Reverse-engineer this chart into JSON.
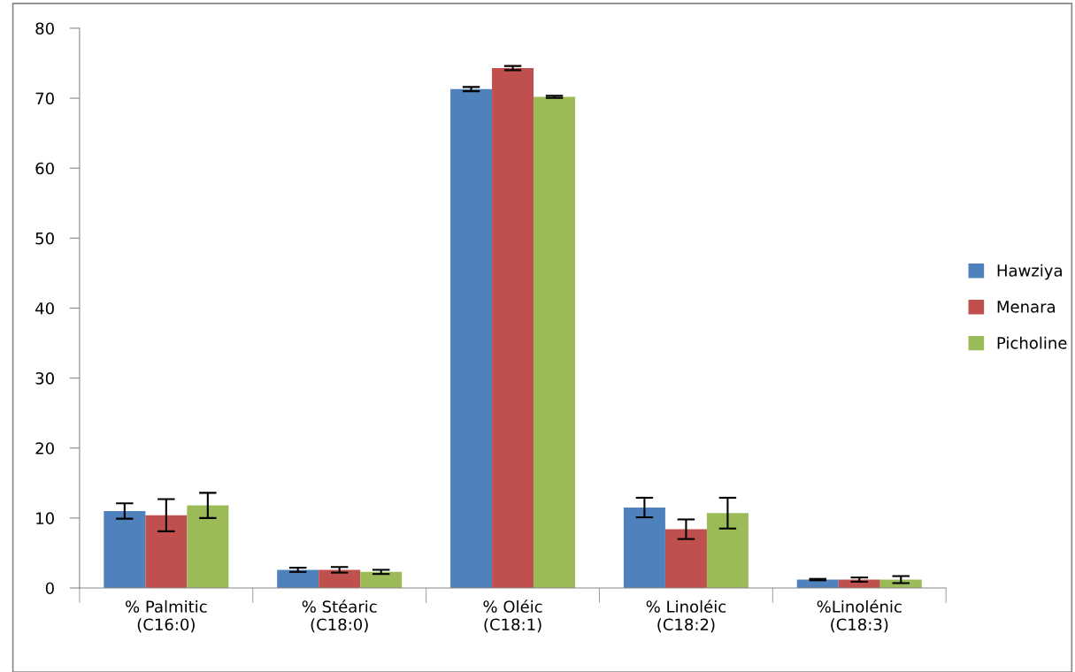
{
  "chart_data": {
    "type": "bar",
    "categories": [
      "% Palmitic\n(C16:0)",
      "% Stéaric\n(C18:0)",
      "% Oléic\n(C18:1)",
      "% Linoléic\n(C18:2)",
      "%Linolénic\n(C18:3)"
    ],
    "series": [
      {
        "name": "Hawziya",
        "color": "#4f81bd",
        "values": [
          11.0,
          2.6,
          71.3,
          11.5,
          1.2
        ],
        "errors": [
          1.1,
          0.3,
          0.3,
          1.4,
          0.1
        ]
      },
      {
        "name": "Menara",
        "color": "#c0504d",
        "values": [
          10.4,
          2.6,
          74.3,
          8.4,
          1.2
        ],
        "errors": [
          2.3,
          0.4,
          0.3,
          1.4,
          0.3
        ]
      },
      {
        "name": "Picholine",
        "color": "#9bbb59",
        "values": [
          11.8,
          2.3,
          70.2,
          10.7,
          1.2
        ],
        "errors": [
          1.8,
          0.3,
          0.15,
          2.2,
          0.5
        ]
      }
    ],
    "ylim": [
      0,
      80
    ],
    "yticks": [
      0,
      10,
      20,
      30,
      40,
      50,
      60,
      70,
      80
    ],
    "legend": "right",
    "grid": false
  }
}
